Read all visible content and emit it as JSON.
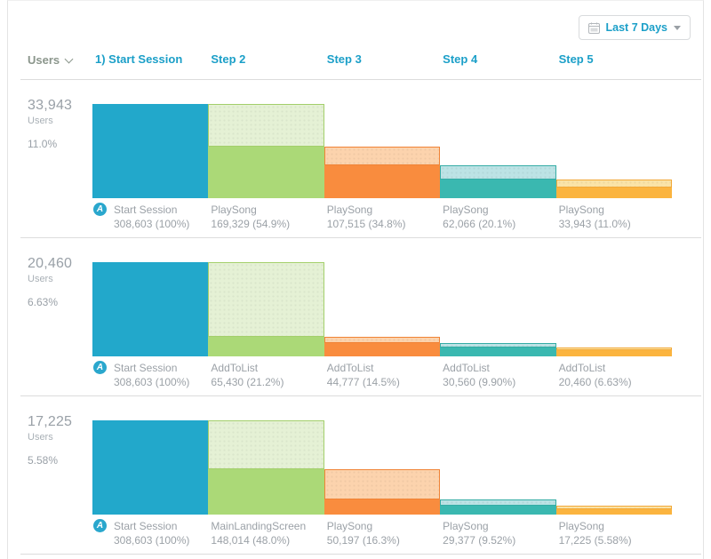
{
  "toolbar": {
    "date_range_label": "Last 7 Days"
  },
  "header": {
    "users_label": "Users"
  },
  "icons": {
    "event_glyph": "A"
  },
  "colors": {
    "accent_blue": "#1b9fc8",
    "divider": "#dcdcdc",
    "label_gray": "#9aa1a8"
  },
  "palette": [
    {
      "solid": "#22a8cb",
      "light": "",
      "border": "#1d9ab9"
    },
    {
      "solid": "#abd977",
      "light": "#e5f1d5",
      "border": "#a3cf6b"
    },
    {
      "solid": "#f98c3e",
      "light": "#fcd3ad",
      "border": "#f08336"
    },
    {
      "solid": "#3ab8b0",
      "light": "#bce3e5",
      "border": "#35aca5"
    },
    {
      "solid": "#fbb43f",
      "light": "#fae3a7",
      "border": "#f2a93a"
    }
  ],
  "chart_data": {
    "type": "funnel",
    "unit": "Users",
    "columns": [
      "1) Start Session",
      "Step 2",
      "Step 3",
      "Step 4",
      "Step 5"
    ],
    "rows": [
      {
        "total_users": "33,943",
        "conversion": "11.0%",
        "steps": [
          {
            "event": "Start Session",
            "count": "308,603",
            "count_num": 308603,
            "pct": 100,
            "pct_label": "100%"
          },
          {
            "event": "PlaySong",
            "count": "169,329",
            "count_num": 169329,
            "pct": 54.9,
            "pct_label": "54.9%"
          },
          {
            "event": "PlaySong",
            "count": "107,515",
            "count_num": 107515,
            "pct": 34.8,
            "pct_label": "34.8%"
          },
          {
            "event": "PlaySong",
            "count": "62,066",
            "count_num": 62066,
            "pct": 20.1,
            "pct_label": "20.1%"
          },
          {
            "event": "PlaySong",
            "count": "33,943",
            "count_num": 33943,
            "pct": 11.0,
            "pct_label": "11.0%"
          }
        ]
      },
      {
        "total_users": "20,460",
        "conversion": "6.63%",
        "steps": [
          {
            "event": "Start Session",
            "count": "308,603",
            "count_num": 308603,
            "pct": 100,
            "pct_label": "100%"
          },
          {
            "event": "AddToList",
            "count": "65,430",
            "count_num": 65430,
            "pct": 21.2,
            "pct_label": "21.2%"
          },
          {
            "event": "AddToList",
            "count": "44,777",
            "count_num": 44777,
            "pct": 14.5,
            "pct_label": "14.5%"
          },
          {
            "event": "AddToList",
            "count": "30,560",
            "count_num": 30560,
            "pct": 9.9,
            "pct_label": "9.90%"
          },
          {
            "event": "AddToList",
            "count": "20,460",
            "count_num": 20460,
            "pct": 6.63,
            "pct_label": "6.63%"
          }
        ]
      },
      {
        "total_users": "17,225",
        "conversion": "5.58%",
        "steps": [
          {
            "event": "Start Session",
            "count": "308,603",
            "count_num": 308603,
            "pct": 100,
            "pct_label": "100%"
          },
          {
            "event": "MainLandingScreen",
            "count": "148,014",
            "count_num": 148014,
            "pct": 48.0,
            "pct_label": "48.0%"
          },
          {
            "event": "PlaySong",
            "count": "50,197",
            "count_num": 50197,
            "pct": 16.3,
            "pct_label": "16.3%"
          },
          {
            "event": "PlaySong",
            "count": "29,377",
            "count_num": 29377,
            "pct": 9.52,
            "pct_label": "9.52%"
          },
          {
            "event": "PlaySong",
            "count": "17,225",
            "count_num": 17225,
            "pct": 5.58,
            "pct_label": "5.58%"
          }
        ]
      }
    ]
  }
}
